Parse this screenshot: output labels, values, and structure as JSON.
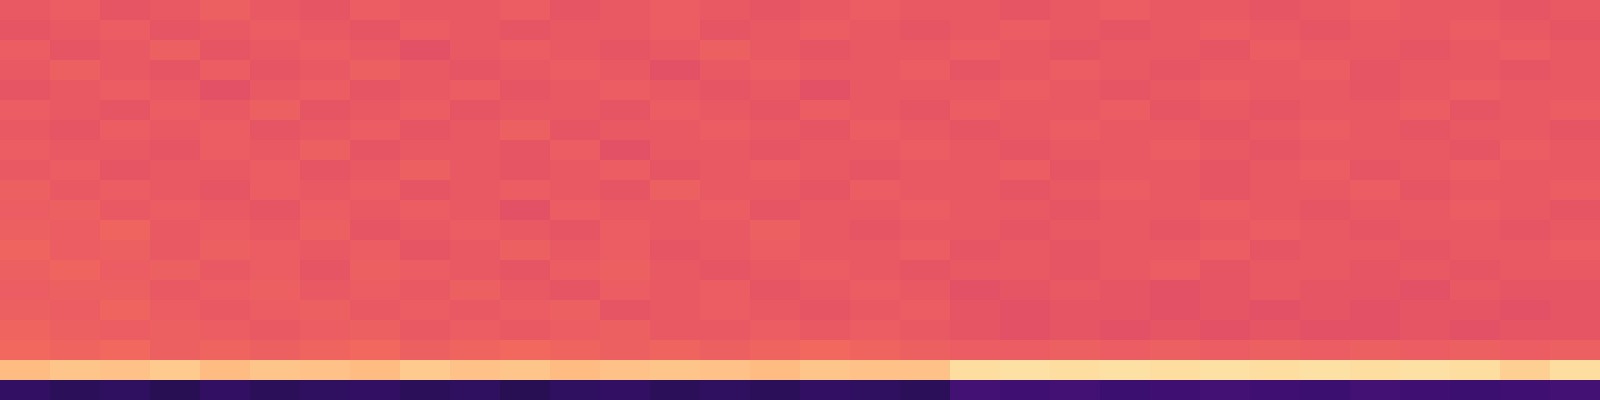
{
  "chart_data": {
    "type": "heatmap",
    "tick_labels": false,
    "cells": [
      [
        0.64,
        0.65,
        0.63,
        0.64,
        0.66,
        0.64,
        0.63,
        0.65,
        0.64,
        0.64,
        0.65,
        0.63,
        0.64,
        0.65,
        0.64,
        0.63,
        0.64,
        0.65,
        0.64,
        0.64,
        0.63,
        0.64,
        0.65,
        0.64,
        0.64,
        0.63,
        0.64,
        0.65,
        0.64,
        0.64,
        0.63,
        0.64
      ],
      [
        0.63,
        0.64,
        0.65,
        0.63,
        0.64,
        0.65,
        0.64,
        0.63,
        0.65,
        0.64,
        0.63,
        0.64,
        0.64,
        0.65,
        0.63,
        0.64,
        0.65,
        0.64,
        0.63,
        0.64,
        0.65,
        0.64,
        0.63,
        0.64,
        0.65,
        0.64,
        0.63,
        0.64,
        0.64,
        0.65,
        0.64,
        0.63
      ],
      [
        0.65,
        0.63,
        0.64,
        0.66,
        0.63,
        0.64,
        0.65,
        0.64,
        0.62,
        0.64,
        0.65,
        0.64,
        0.63,
        0.64,
        0.66,
        0.64,
        0.63,
        0.64,
        0.64,
        0.65,
        0.64,
        0.63,
        0.64,
        0.64,
        0.63,
        0.65,
        0.64,
        0.64,
        0.63,
        0.64,
        0.65,
        0.64
      ],
      [
        0.64,
        0.66,
        0.64,
        0.63,
        0.65,
        0.63,
        0.64,
        0.66,
        0.64,
        0.63,
        0.64,
        0.65,
        0.64,
        0.62,
        0.64,
        0.65,
        0.64,
        0.64,
        0.65,
        0.63,
        0.64,
        0.65,
        0.64,
        0.63,
        0.64,
        0.64,
        0.65,
        0.63,
        0.64,
        0.64,
        0.63,
        0.64
      ],
      [
        0.63,
        0.64,
        0.65,
        0.64,
        0.62,
        0.64,
        0.65,
        0.63,
        0.64,
        0.65,
        0.63,
        0.64,
        0.65,
        0.64,
        0.63,
        0.64,
        0.62,
        0.64,
        0.64,
        0.64,
        0.65,
        0.64,
        0.63,
        0.64,
        0.65,
        0.64,
        0.64,
        0.63,
        0.64,
        0.65,
        0.64,
        0.64
      ],
      [
        0.65,
        0.64,
        0.63,
        0.65,
        0.64,
        0.66,
        0.63,
        0.64,
        0.65,
        0.63,
        0.64,
        0.64,
        0.63,
        0.65,
        0.64,
        0.63,
        0.65,
        0.64,
        0.63,
        0.65,
        0.64,
        0.64,
        0.65,
        0.63,
        0.64,
        0.63,
        0.64,
        0.64,
        0.65,
        0.63,
        0.64,
        0.65
      ],
      [
        0.64,
        0.63,
        0.65,
        0.64,
        0.65,
        0.63,
        0.64,
        0.65,
        0.63,
        0.64,
        0.66,
        0.63,
        0.64,
        0.64,
        0.65,
        0.64,
        0.63,
        0.65,
        0.64,
        0.63,
        0.64,
        0.65,
        0.64,
        0.64,
        0.63,
        0.64,
        0.65,
        0.64,
        0.63,
        0.64,
        0.64,
        0.63
      ],
      [
        0.65,
        0.64,
        0.64,
        0.63,
        0.65,
        0.64,
        0.66,
        0.63,
        0.64,
        0.64,
        0.63,
        0.65,
        0.62,
        0.64,
        0.64,
        0.63,
        0.64,
        0.64,
        0.65,
        0.64,
        0.63,
        0.64,
        0.64,
        0.65,
        0.64,
        0.63,
        0.64,
        0.64,
        0.64,
        0.63,
        0.65,
        0.64
      ],
      [
        0.64,
        0.65,
        0.63,
        0.64,
        0.64,
        0.65,
        0.63,
        0.64,
        0.66,
        0.64,
        0.63,
        0.64,
        0.65,
        0.63,
        0.64,
        0.65,
        0.64,
        0.63,
        0.64,
        0.64,
        0.65,
        0.63,
        0.64,
        0.64,
        0.63,
        0.64,
        0.65,
        0.63,
        0.64,
        0.65,
        0.64,
        0.64
      ],
      [
        0.66,
        0.64,
        0.65,
        0.64,
        0.63,
        0.65,
        0.64,
        0.65,
        0.63,
        0.64,
        0.65,
        0.64,
        0.63,
        0.66,
        0.64,
        0.64,
        0.63,
        0.65,
        0.64,
        0.64,
        0.63,
        0.64,
        0.65,
        0.64,
        0.63,
        0.64,
        0.64,
        0.65,
        0.63,
        0.64,
        0.64,
        0.65
      ],
      [
        0.65,
        0.66,
        0.64,
        0.65,
        0.64,
        0.63,
        0.65,
        0.64,
        0.65,
        0.64,
        0.62,
        0.65,
        0.64,
        0.64,
        0.65,
        0.63,
        0.64,
        0.64,
        0.65,
        0.64,
        0.64,
        0.63,
        0.64,
        0.64,
        0.65,
        0.64,
        0.63,
        0.64,
        0.64,
        0.65,
        0.64,
        0.63
      ],
      [
        0.66,
        0.65,
        0.67,
        0.64,
        0.65,
        0.64,
        0.66,
        0.63,
        0.64,
        0.65,
        0.64,
        0.63,
        0.65,
        0.64,
        0.64,
        0.66,
        0.64,
        0.63,
        0.64,
        0.64,
        0.63,
        0.64,
        0.64,
        0.63,
        0.64,
        0.65,
        0.64,
        0.63,
        0.64,
        0.64,
        0.63,
        0.64
      ],
      [
        0.67,
        0.65,
        0.66,
        0.64,
        0.66,
        0.65,
        0.64,
        0.65,
        0.63,
        0.64,
        0.66,
        0.64,
        0.65,
        0.63,
        0.64,
        0.65,
        0.64,
        0.64,
        0.65,
        0.63,
        0.64,
        0.63,
        0.64,
        0.64,
        0.65,
        0.63,
        0.64,
        0.64,
        0.63,
        0.64,
        0.64,
        0.65
      ],
      [
        0.66,
        0.67,
        0.65,
        0.66,
        0.64,
        0.65,
        0.63,
        0.66,
        0.65,
        0.64,
        0.63,
        0.65,
        0.66,
        0.64,
        0.63,
        0.64,
        0.65,
        0.64,
        0.63,
        0.64,
        0.64,
        0.63,
        0.64,
        0.65,
        0.63,
        0.64,
        0.64,
        0.63,
        0.64,
        0.63,
        0.64,
        0.64
      ],
      [
        0.65,
        0.66,
        0.66,
        0.64,
        0.65,
        0.66,
        0.64,
        0.65,
        0.64,
        0.66,
        0.64,
        0.63,
        0.65,
        0.64,
        0.65,
        0.63,
        0.64,
        0.65,
        0.64,
        0.62,
        0.63,
        0.64,
        0.63,
        0.62,
        0.63,
        0.64,
        0.63,
        0.63,
        0.62,
        0.64,
        0.63,
        0.63
      ],
      [
        0.66,
        0.65,
        0.67,
        0.65,
        0.64,
        0.65,
        0.66,
        0.64,
        0.65,
        0.64,
        0.65,
        0.66,
        0.63,
        0.64,
        0.65,
        0.64,
        0.63,
        0.64,
        0.65,
        0.63,
        0.62,
        0.63,
        0.63,
        0.62,
        0.63,
        0.62,
        0.63,
        0.62,
        0.63,
        0.63,
        0.62,
        0.63
      ],
      [
        0.67,
        0.66,
        0.65,
        0.66,
        0.65,
        0.64,
        0.65,
        0.66,
        0.64,
        0.65,
        0.64,
        0.65,
        0.66,
        0.64,
        0.64,
        0.65,
        0.64,
        0.65,
        0.64,
        0.63,
        0.62,
        0.63,
        0.62,
        0.63,
        0.62,
        0.63,
        0.62,
        0.62,
        0.63,
        0.62,
        0.63,
        0.63
      ],
      [
        0.68,
        0.67,
        0.68,
        0.66,
        0.67,
        0.66,
        0.67,
        0.68,
        0.66,
        0.67,
        0.68,
        0.67,
        0.66,
        0.67,
        0.66,
        0.67,
        0.68,
        0.67,
        0.66,
        0.65,
        0.65,
        0.66,
        0.65,
        0.66,
        0.65,
        0.66,
        0.65,
        0.66,
        0.65,
        0.66,
        0.65,
        0.66
      ],
      [
        0.86,
        0.88,
        0.87,
        0.89,
        0.86,
        0.88,
        0.87,
        0.86,
        0.89,
        0.87,
        0.88,
        0.86,
        0.87,
        0.88,
        0.87,
        0.86,
        0.88,
        0.87,
        0.87,
        0.93,
        0.94,
        0.93,
        0.94,
        0.93,
        0.94,
        0.93,
        0.94,
        0.93,
        0.94,
        0.93,
        0.9,
        0.93
      ],
      [
        0.18,
        0.16,
        0.17,
        0.15,
        0.18,
        0.16,
        0.17,
        0.18,
        0.16,
        0.17,
        0.15,
        0.17,
        0.18,
        0.16,
        0.17,
        0.16,
        0.18,
        0.17,
        0.16,
        0.22,
        0.21,
        0.22,
        0.2,
        0.21,
        0.22,
        0.21,
        0.2,
        0.22,
        0.21,
        0.2,
        0.21,
        0.22
      ]
    ]
  }
}
